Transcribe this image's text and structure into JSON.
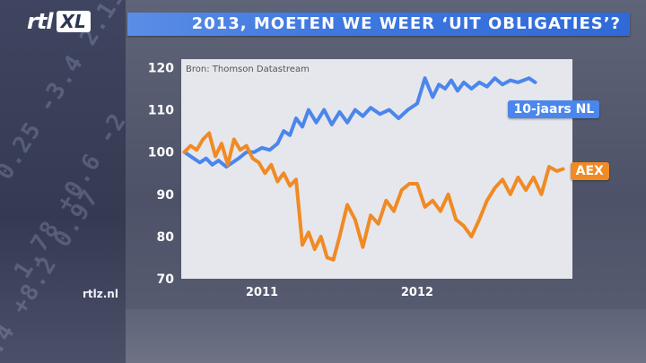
{
  "brand": {
    "logo_main": "rtl",
    "logo_sub": "XL"
  },
  "title": "2013, MOETEN WE WEER ‘UIT OBLIGATIES’?",
  "site": "rtlz.nl",
  "colors": {
    "title_bar": "#3f78e0",
    "plot_bg": "#e6e7ec",
    "series_blue": "#4b86ec",
    "series_orange": "#f08a24"
  },
  "chart_data": {
    "type": "line",
    "source": "Bron: Thomson Datastream",
    "xlabel": "",
    "ylabel": "",
    "ylim": [
      70,
      122
    ],
    "yticks": [
      70,
      80,
      90,
      100,
      110,
      120
    ],
    "xlim": [
      2010.48,
      2013.0
    ],
    "xticks": [
      {
        "label": "2011",
        "x": 2011.0
      },
      {
        "label": "2012",
        "x": 2012.0
      }
    ],
    "grid": false,
    "legend": "labels at series end (right)",
    "series": [
      {
        "name": "10-jaars NL",
        "color": "#4b86ec",
        "points": [
          [
            2010.5,
            100.0
          ],
          [
            2010.56,
            98.5
          ],
          [
            2010.6,
            97.5
          ],
          [
            2010.64,
            98.5
          ],
          [
            2010.68,
            97.0
          ],
          [
            2010.72,
            98.0
          ],
          [
            2010.77,
            96.5
          ],
          [
            2010.81,
            97.5
          ],
          [
            2010.85,
            98.5
          ],
          [
            2010.9,
            100.0
          ],
          [
            2010.95,
            100.0
          ],
          [
            2011.0,
            101.0
          ],
          [
            2011.05,
            100.5
          ],
          [
            2011.1,
            102.0
          ],
          [
            2011.14,
            105.0
          ],
          [
            2011.18,
            104.0
          ],
          [
            2011.22,
            108.0
          ],
          [
            2011.26,
            106.0
          ],
          [
            2011.3,
            110.0
          ],
          [
            2011.35,
            107.0
          ],
          [
            2011.4,
            110.0
          ],
          [
            2011.45,
            106.5
          ],
          [
            2011.5,
            109.5
          ],
          [
            2011.55,
            107.0
          ],
          [
            2011.6,
            110.0
          ],
          [
            2011.65,
            108.5
          ],
          [
            2011.7,
            110.5
          ],
          [
            2011.76,
            109.0
          ],
          [
            2011.82,
            110.0
          ],
          [
            2011.88,
            108.0
          ],
          [
            2011.94,
            110.0
          ],
          [
            2012.0,
            111.5
          ],
          [
            2012.05,
            117.5
          ],
          [
            2012.1,
            113.0
          ],
          [
            2012.14,
            116.0
          ],
          [
            2012.18,
            115.0
          ],
          [
            2012.22,
            117.0
          ],
          [
            2012.26,
            114.5
          ],
          [
            2012.3,
            116.5
          ],
          [
            2012.35,
            115.0
          ],
          [
            2012.4,
            116.5
          ],
          [
            2012.45,
            115.5
          ],
          [
            2012.5,
            117.5
          ],
          [
            2012.55,
            116.0
          ],
          [
            2012.6,
            117.0
          ],
          [
            2012.65,
            116.5
          ],
          [
            2012.72,
            117.5
          ],
          [
            2012.76,
            116.5
          ]
        ]
      },
      {
        "name": "AEX",
        "color": "#f08a24",
        "points": [
          [
            2010.5,
            100.0
          ],
          [
            2010.54,
            101.5
          ],
          [
            2010.58,
            100.5
          ],
          [
            2010.62,
            103.0
          ],
          [
            2010.66,
            104.5
          ],
          [
            2010.7,
            99.0
          ],
          [
            2010.74,
            102.0
          ],
          [
            2010.78,
            97.0
          ],
          [
            2010.82,
            103.0
          ],
          [
            2010.86,
            100.5
          ],
          [
            2010.9,
            101.5
          ],
          [
            2010.94,
            98.5
          ],
          [
            2010.98,
            97.5
          ],
          [
            2011.02,
            95.0
          ],
          [
            2011.06,
            97.0
          ],
          [
            2011.1,
            93.0
          ],
          [
            2011.14,
            95.0
          ],
          [
            2011.18,
            92.0
          ],
          [
            2011.22,
            93.5
          ],
          [
            2011.26,
            78.0
          ],
          [
            2011.3,
            81.0
          ],
          [
            2011.34,
            77.0
          ],
          [
            2011.38,
            80.0
          ],
          [
            2011.42,
            75.0
          ],
          [
            2011.46,
            74.5
          ],
          [
            2011.5,
            80.0
          ],
          [
            2011.55,
            87.5
          ],
          [
            2011.6,
            84.0
          ],
          [
            2011.65,
            77.5
          ],
          [
            2011.7,
            85.0
          ],
          [
            2011.75,
            83.0
          ],
          [
            2011.8,
            88.5
          ],
          [
            2011.85,
            86.0
          ],
          [
            2011.9,
            91.0
          ],
          [
            2011.95,
            92.5
          ],
          [
            2012.0,
            92.5
          ],
          [
            2012.05,
            87.0
          ],
          [
            2012.1,
            88.5
          ],
          [
            2012.15,
            86.0
          ],
          [
            2012.2,
            90.0
          ],
          [
            2012.25,
            84.0
          ],
          [
            2012.3,
            82.5
          ],
          [
            2012.35,
            80.0
          ],
          [
            2012.4,
            84.0
          ],
          [
            2012.45,
            88.5
          ],
          [
            2012.5,
            91.5
          ],
          [
            2012.55,
            93.5
          ],
          [
            2012.6,
            90.0
          ],
          [
            2012.65,
            94.0
          ],
          [
            2012.7,
            91.0
          ],
          [
            2012.75,
            94.0
          ],
          [
            2012.8,
            90.0
          ],
          [
            2012.85,
            96.5
          ],
          [
            2012.9,
            95.5
          ],
          [
            2012.94,
            96.0
          ]
        ]
      }
    ]
  }
}
